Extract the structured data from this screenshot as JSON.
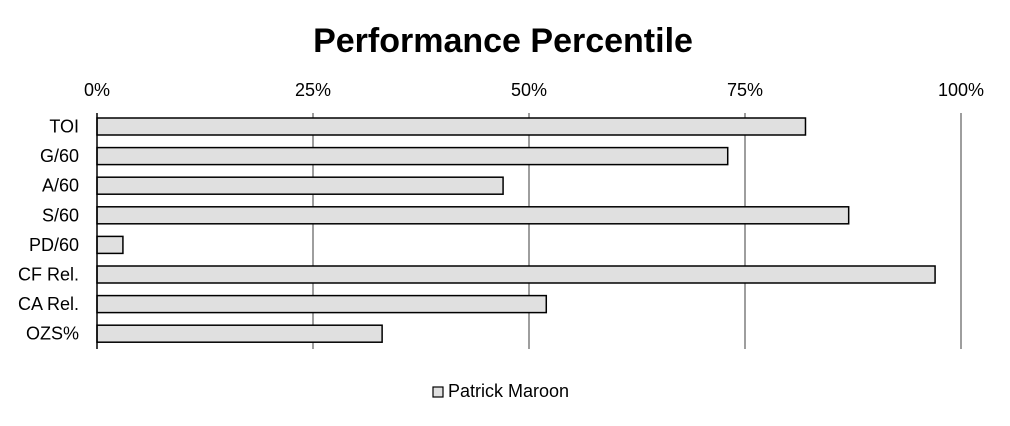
{
  "chart_data": {
    "type": "bar",
    "orientation": "horizontal",
    "title": "Performance Percentile",
    "xlabel": "",
    "ylabel": "",
    "categories": [
      "TOI",
      "G/60",
      "A/60",
      "S/60",
      "PD/60",
      "CF Rel.",
      "CA Rel.",
      "OZS%"
    ],
    "series": [
      {
        "name": "Patrick Maroon",
        "values": [
          82,
          73,
          47,
          87,
          3,
          97,
          52,
          33
        ]
      }
    ],
    "x_ticks": [
      "0%",
      "25%",
      "50%",
      "75%",
      "100%"
    ],
    "xlim": [
      0,
      100
    ],
    "axis_position": "top",
    "grid": true,
    "legend": "bottom-center",
    "colors": {
      "bar_fill": "#e0e0e0",
      "bar_stroke": "#000000",
      "grid": "#7f7f7f",
      "axis": "#000000"
    }
  }
}
